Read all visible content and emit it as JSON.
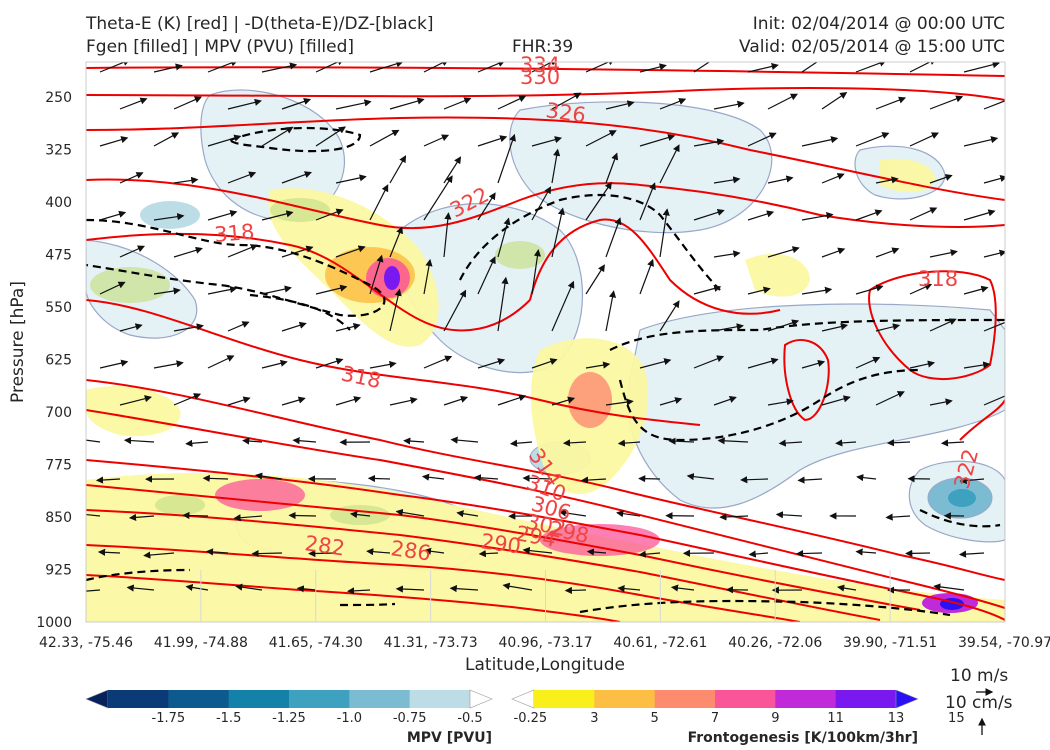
{
  "header": {
    "title_line1": "Theta-E (K) [red] | -D(theta-E)/DZ-[black]",
    "title_line2": "Fgen [filled] | MPV (PVU) [filled]",
    "fhr": "FHR:39",
    "init": "Init: 02/04/2014 @ 00:00 UTC",
    "valid": "Valid: 02/05/2014 @ 15:00 UTC"
  },
  "chart_data": {
    "type": "cross-section",
    "xlabel": "Latitude,Longitude",
    "ylabel": "Pressure [hPa]",
    "ylim": [
      1000,
      200
    ],
    "y_ticks": [
      250,
      325,
      400,
      475,
      550,
      625,
      700,
      775,
      850,
      925,
      1000
    ],
    "x_ticks": [
      "42.33, -75.46",
      "41.99, -74.88",
      "41.65, -74.30",
      "41.31, -73.73",
      "40.96, -73.17",
      "40.61, -72.61",
      "40.26, -72.06",
      "39.90, -71.51",
      "39.54, -70.97"
    ],
    "theta_e_contour_labels": [
      "334",
      "330",
      "326",
      "322",
      "318",
      "318",
      "318",
      "322",
      "314",
      "310",
      "306",
      "302",
      "298",
      "294",
      "290",
      "286",
      "282"
    ],
    "wind_reference": {
      "horizontal": "10 m/s",
      "vertical": "10 cm/s"
    },
    "mpv_colorbar": {
      "title": "MPV [PVU]",
      "ticks": [
        "-1.75",
        "-1.5",
        "-1.25",
        "-1.0",
        "-0.75",
        "-0.5",
        "-0.25"
      ],
      "colors": [
        "#08205c",
        "#0b3b77",
        "#0d5a8f",
        "#1482a8",
        "#3ea1c0",
        "#7cbcd3",
        "#bcdde6",
        "#ffffff"
      ]
    },
    "fgen_colorbar": {
      "title": "Frontogenesis [K/100km/3hr]",
      "ticks": [
        "3",
        "5",
        "7",
        "9",
        "11",
        "13",
        "15"
      ],
      "colors": [
        "#ffffff",
        "#f9ef1a",
        "#fdbe44",
        "#fc8b70",
        "#fb5599",
        "#c02ad9",
        "#7a18f0",
        "#2a10f5"
      ]
    }
  }
}
